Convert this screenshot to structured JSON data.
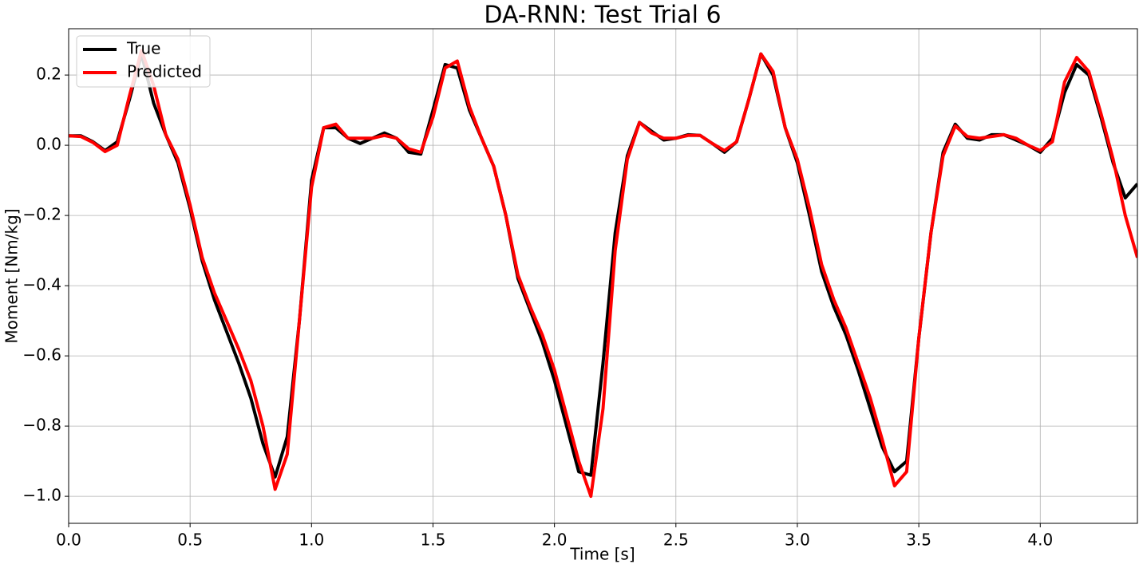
{
  "chart_data": {
    "type": "line",
    "title": "DA-RNN: Test Trial 6",
    "xlabel": "Time [s]",
    "ylabel": "Moment [Nm/kg]",
    "x": [
      0,
      0.05,
      0.1,
      0.15,
      0.2,
      0.25,
      0.3,
      0.35,
      0.4,
      0.45,
      0.5,
      0.55,
      0.6,
      0.65,
      0.7,
      0.75,
      0.8,
      0.85,
      0.9,
      0.95,
      1.0,
      1.05,
      1.1,
      1.15,
      1.2,
      1.25,
      1.3,
      1.35,
      1.4,
      1.45,
      1.5,
      1.55,
      1.6,
      1.65,
      1.7,
      1.75,
      1.8,
      1.85,
      1.9,
      1.95,
      2.0,
      2.05,
      2.1,
      2.15,
      2.2,
      2.25,
      2.3,
      2.35,
      2.4,
      2.45,
      2.5,
      2.55,
      2.6,
      2.65,
      2.7,
      2.75,
      2.8,
      2.85,
      2.9,
      2.95,
      3.0,
      3.05,
      3.1,
      3.15,
      3.2,
      3.25,
      3.3,
      3.35,
      3.4,
      3.45,
      3.5,
      3.55,
      3.6,
      3.65,
      3.7,
      3.75,
      3.8,
      3.85,
      3.9,
      3.95,
      4.0,
      4.05,
      4.1,
      4.15,
      4.2,
      4.25,
      4.3,
      4.35,
      4.4
    ],
    "series": [
      {
        "name": "True",
        "color": "#000000",
        "values": [
          0.027,
          0.027,
          0.01,
          -0.015,
          0.01,
          0.13,
          0.26,
          0.12,
          0.03,
          -0.05,
          -0.18,
          -0.33,
          -0.44,
          -0.53,
          -0.62,
          -0.72,
          -0.85,
          -0.945,
          -0.83,
          -0.5,
          -0.1,
          0.05,
          0.05,
          0.02,
          0.005,
          0.02,
          0.035,
          0.02,
          -0.02,
          -0.025,
          0.1,
          0.23,
          0.22,
          0.1,
          0.02,
          -0.06,
          -0.2,
          -0.38,
          -0.47,
          -0.56,
          -0.67,
          -0.8,
          -0.93,
          -0.94,
          -0.62,
          -0.25,
          -0.03,
          0.065,
          0.04,
          0.015,
          0.02,
          0.03,
          0.028,
          0.005,
          -0.02,
          0.01,
          0.13,
          0.26,
          0.2,
          0.05,
          -0.05,
          -0.2,
          -0.36,
          -0.46,
          -0.54,
          -0.64,
          -0.75,
          -0.86,
          -0.93,
          -0.9,
          -0.55,
          -0.25,
          -0.02,
          0.06,
          0.02,
          0.015,
          0.03,
          0.03,
          0.015,
          0.0,
          -0.02,
          0.02,
          0.15,
          0.23,
          0.2,
          0.08,
          -0.05,
          -0.15,
          -0.11
        ]
      },
      {
        "name": "Predicted",
        "color": "#ff0000",
        "values": [
          0.027,
          0.025,
          0.008,
          -0.018,
          0.0,
          0.14,
          0.27,
          0.17,
          0.03,
          -0.04,
          -0.17,
          -0.32,
          -0.42,
          -0.5,
          -0.58,
          -0.67,
          -0.8,
          -0.98,
          -0.88,
          -0.5,
          -0.12,
          0.05,
          0.06,
          0.02,
          0.02,
          0.02,
          0.028,
          0.02,
          -0.01,
          -0.02,
          0.08,
          0.22,
          0.24,
          0.11,
          0.02,
          -0.06,
          -0.2,
          -0.37,
          -0.46,
          -0.54,
          -0.64,
          -0.77,
          -0.9,
          -1.0,
          -0.75,
          -0.3,
          -0.04,
          0.065,
          0.035,
          0.02,
          0.02,
          0.028,
          0.028,
          0.005,
          -0.015,
          0.01,
          0.13,
          0.26,
          0.21,
          0.05,
          -0.04,
          -0.18,
          -0.34,
          -0.44,
          -0.52,
          -0.62,
          -0.72,
          -0.84,
          -0.97,
          -0.93,
          -0.55,
          -0.25,
          -0.03,
          0.055,
          0.025,
          0.02,
          0.025,
          0.03,
          0.02,
          0.0,
          -0.015,
          0.01,
          0.18,
          0.25,
          0.21,
          0.09,
          -0.04,
          -0.2,
          -0.32
        ]
      }
    ],
    "xlim": [
      0,
      4.4
    ],
    "ylim": [
      -1.077,
      0.332
    ],
    "xticks": [
      {
        "value": 0,
        "label": "0.0"
      },
      0.5,
      {
        "value": 1,
        "label": "1.0"
      },
      1.5,
      {
        "value": 2,
        "label": "2.0"
      },
      2.5,
      {
        "value": 3,
        "label": "3.0"
      },
      3.5,
      {
        "value": 4,
        "label": "4.0"
      }
    ],
    "yticks": [
      {
        "value": -1,
        "label": "−1.0"
      },
      {
        "value": -0.8,
        "label": "−0.8"
      },
      {
        "value": -0.6,
        "label": "−0.6"
      },
      {
        "value": -0.4,
        "label": "−0.4"
      },
      {
        "value": -0.2,
        "label": "−0.2"
      },
      {
        "value": 0,
        "label": "0.0"
      },
      {
        "value": 0.2,
        "label": "0.2"
      }
    ],
    "grid": true,
    "legend": "upper left"
  }
}
